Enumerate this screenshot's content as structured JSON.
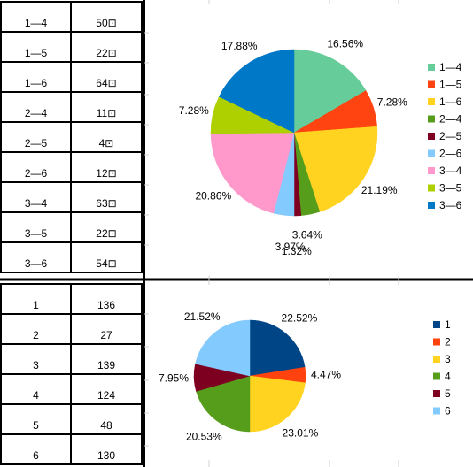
{
  "sheet": {
    "table_top": {
      "rows": [
        {
          "label": "1—4",
          "value": "50⊡"
        },
        {
          "label": "1—5",
          "value": "22⊡"
        },
        {
          "label": "1—6",
          "value": "64⊡"
        },
        {
          "label": "2—4",
          "value": "11⊡"
        },
        {
          "label": "2—5",
          "value": "4⊡"
        },
        {
          "label": "2—6",
          "value": "12⊡"
        },
        {
          "label": "3—4",
          "value": "63⊡"
        },
        {
          "label": "3—5",
          "value": "22⊡"
        },
        {
          "label": "3—6",
          "value": "54⊡"
        }
      ]
    },
    "table_bottom": {
      "rows": [
        {
          "label": "1",
          "value": "136"
        },
        {
          "label": "2",
          "value": "27"
        },
        {
          "label": "3",
          "value": "139"
        },
        {
          "label": "4",
          "value": "124"
        },
        {
          "label": "5",
          "value": "48"
        },
        {
          "label": "6",
          "value": "130"
        }
      ]
    }
  },
  "chart_data": [
    {
      "type": "pie",
      "categories": [
        "1—4",
        "1—5",
        "1—6",
        "2—4",
        "2—5",
        "2—6",
        "3—4",
        "3—5",
        "3—6"
      ],
      "values": [
        50,
        22,
        64,
        11,
        4,
        12,
        63,
        22,
        54
      ],
      "labels": [
        "16.56%",
        "7.28%",
        "21.19%",
        "3.64%",
        "1.32%",
        "3.97%",
        "20.86%",
        "7.28%",
        "17.88%"
      ],
      "colors": [
        "#66cc99",
        "#ff4411",
        "#ffd320",
        "#579d1c",
        "#7e0021",
        "#83caff",
        "#ff99cc",
        "#aecf00",
        "#0078c8"
      ],
      "legend": "right"
    },
    {
      "type": "pie",
      "categories": [
        "1",
        "2",
        "3",
        "4",
        "5",
        "6"
      ],
      "values": [
        136,
        27,
        139,
        124,
        48,
        130
      ],
      "labels": [
        "22.52%",
        "4.47%",
        "23.01%",
        "20.53%",
        "7.95%",
        "21.52%"
      ],
      "colors": [
        "#004586",
        "#ff420e",
        "#ffd320",
        "#579d1c",
        "#7e0021",
        "#83caff"
      ],
      "legend": "right"
    }
  ]
}
